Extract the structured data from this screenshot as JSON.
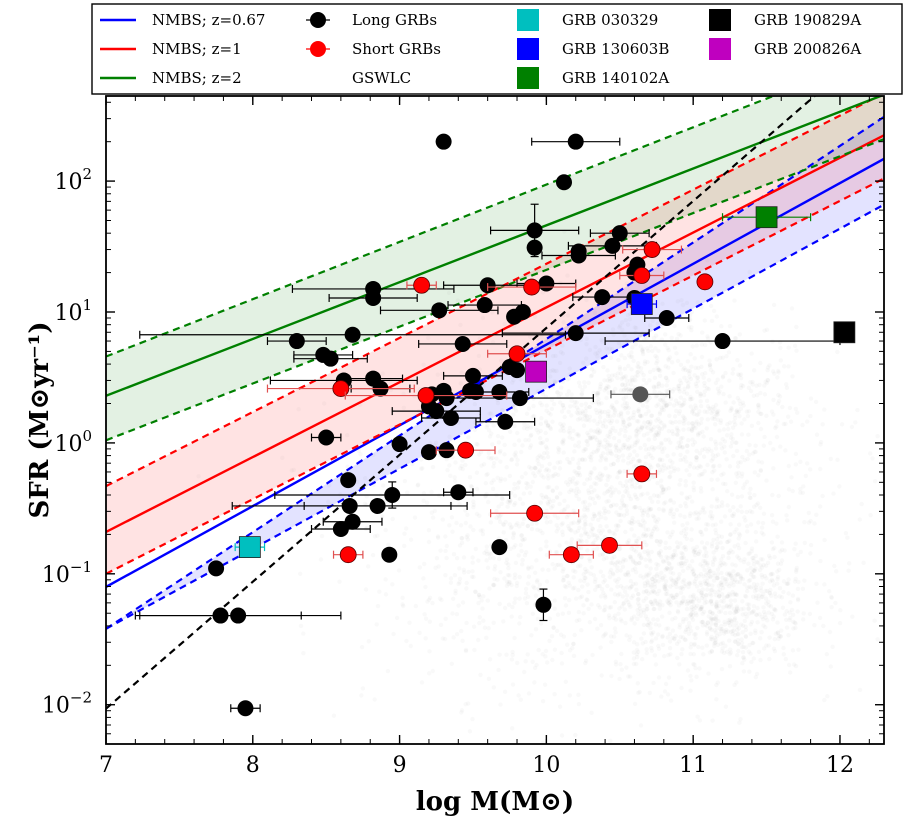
{
  "chart_data": {
    "type": "scatter",
    "xlabel": "log M(M⊙)",
    "ylabel": "SFR (M⊙yr⁻¹)",
    "xlim": [
      7,
      12.3
    ],
    "ylim_log10": [
      -2.3,
      2.65
    ],
    "x_ticks": [
      7,
      8,
      9,
      10,
      11,
      12
    ],
    "y_ticks": [
      {
        "exp": -2,
        "label_base": "10",
        "label_exp": "−2"
      },
      {
        "exp": -1,
        "label_base": "10",
        "label_exp": "−1"
      },
      {
        "exp": 0,
        "label_base": "10",
        "label_exp": "0"
      },
      {
        "exp": 1,
        "label_base": "10",
        "label_exp": "1"
      },
      {
        "exp": 2,
        "label_base": "10",
        "label_exp": "2"
      }
    ],
    "legend": [
      {
        "label": "NMBS; z=0.67",
        "kind": "line",
        "color": "#0000ff"
      },
      {
        "label": "NMBS; z=1",
        "kind": "line",
        "color": "#ff0000"
      },
      {
        "label": "NMBS; z=2",
        "kind": "line",
        "color": "#008000"
      },
      {
        "label": "Long GRBs",
        "kind": "circle",
        "color": "#000000"
      },
      {
        "label": "Short GRBs",
        "kind": "circle",
        "color": "#ff0000"
      },
      {
        "label": "GSWLC",
        "kind": "none",
        "color": "#808080"
      },
      {
        "label": "GRB 030329",
        "kind": "square",
        "color": "#00bfbf"
      },
      {
        "label": "GRB 130603B",
        "kind": "square",
        "color": "#0000ff"
      },
      {
        "label": "GRB 140102A",
        "kind": "square",
        "color": "#008000"
      },
      {
        "label": "GRB 190829A",
        "kind": "square",
        "color": "#000000"
      },
      {
        "label": "GRB 200826A",
        "kind": "square",
        "color": "#bf00bf"
      }
    ],
    "main_sequence": [
      {
        "name": "NMBS; z=0.67",
        "color": "#0000ff",
        "x": [
          7,
          12.3
        ],
        "y_log10": [
          -1.1,
          2.17
        ],
        "band_log10": [
          -1.42,
          2.49
        ]
      },
      {
        "name": "NMBS; z=1",
        "color": "#ff0000",
        "x": [
          7,
          12.3
        ],
        "y_log10": [
          -0.68,
          2.35
        ],
        "band_log10": [
          -0.33,
          2.67
        ]
      },
      {
        "name": "NMBS; z=2",
        "color": "#008000",
        "x": [
          7,
          12.3
        ],
        "y_log10": [
          0.36,
          2.66
        ],
        "band_log10": [
          0.66,
          2.98
        ]
      }
    ],
    "band_lower_log10": [
      {
        "name": "NMBS; z=0.67",
        "y_log10": [
          -1.42,
          1.82
        ]
      },
      {
        "name": "NMBS; z=1",
        "y_log10": [
          -1.0,
          2.02
        ]
      },
      {
        "name": "NMBS; z=2",
        "y_log10": [
          0.02,
          2.32
        ]
      }
    ],
    "reference_line": {
      "style": "dashed",
      "color": "#000000",
      "x": [
        7,
        11.9
      ],
      "y_log10": [
        -2.03,
        2.72
      ]
    },
    "gswlc_clouds": [
      {
        "cx": 10.45,
        "cy_log10": -0.35,
        "sx": 0.75,
        "sy": 0.6,
        "n": 1400
      },
      {
        "cx": 10.75,
        "cy_log10": 0.35,
        "sx": 0.4,
        "sy": 0.35,
        "n": 700
      },
      {
        "cx": 11.1,
        "cy_log10": -1.2,
        "sx": 0.35,
        "sy": 0.3,
        "n": 900
      },
      {
        "cx": 10.0,
        "cy_log10": -0.9,
        "sx": 0.6,
        "sy": 0.6,
        "n": 600
      }
    ],
    "long_grbs": [
      {
        "x": 9.3,
        "y": 200
      },
      {
        "x": 10.2,
        "y": 200,
        "xerr": 0.3
      },
      {
        "x": 10.12,
        "y": 98
      },
      {
        "x": 9.92,
        "y": 42,
        "yerr": 0.2,
        "xerr": 0.3
      },
      {
        "x": 9.92,
        "y": 31
      },
      {
        "x": 10.5,
        "y": 40,
        "xerr": 0.2
      },
      {
        "x": 10.45,
        "y": 32,
        "xerr": 0.3
      },
      {
        "x": 10.22,
        "y": 29
      },
      {
        "x": 10.22,
        "y": 27,
        "xerr": 0.25
      },
      {
        "x": 10.62,
        "y": 23
      },
      {
        "x": 10.6,
        "y": 20
      },
      {
        "x": 10.0,
        "y": 16.5,
        "xerr": 0.2
      },
      {
        "x": 9.6,
        "y": 16,
        "xerr": 0.3
      },
      {
        "x": 8.82,
        "y": 15,
        "xerr": 0.55
      },
      {
        "x": 8.82,
        "y": 12.8,
        "xerr": 0.3
      },
      {
        "x": 9.27,
        "y": 10.3,
        "xerr": 0.4
      },
      {
        "x": 9.58,
        "y": 11.3,
        "xerr": 0.25
      },
      {
        "x": 10.38,
        "y": 13,
        "xerr": 0.2
      },
      {
        "x": 10.6,
        "y": 12.8
      },
      {
        "x": 10.82,
        "y": 9,
        "xerr": 0.15
      },
      {
        "x": 9.84,
        "y": 10
      },
      {
        "x": 9.78,
        "y": 9.2
      },
      {
        "x": 10.2,
        "y": 6.9,
        "xerr": 0.5
      },
      {
        "x": 8.3,
        "y": 6,
        "xerr": 0.2
      },
      {
        "x": 8.68,
        "y": 6.7,
        "xerr": 1.45
      },
      {
        "x": 8.48,
        "y": 4.7,
        "xerr": 0.2
      },
      {
        "x": 8.53,
        "y": 4.4,
        "xerr": 0.25
      },
      {
        "x": 9.43,
        "y": 5.7,
        "xerr": 0.3
      },
      {
        "x": 11.2,
        "y": 6,
        "xerr": 0.8
      },
      {
        "x": 9.75,
        "y": 3.8
      },
      {
        "x": 9.8,
        "y": 3.6
      },
      {
        "x": 9.5,
        "y": 3.25,
        "xerr": 0.2
      },
      {
        "x": 8.62,
        "y": 3.0,
        "xerr": 0.5
      },
      {
        "x": 8.82,
        "y": 3.1,
        "xerr": 0.2
      },
      {
        "x": 8.87,
        "y": 2.6,
        "xerr": 0.2
      },
      {
        "x": 9.22,
        "y": 2.35
      },
      {
        "x": 9.3,
        "y": 2.5
      },
      {
        "x": 9.48,
        "y": 2.5
      },
      {
        "x": 9.52,
        "y": 2.45
      },
      {
        "x": 9.68,
        "y": 2.45,
        "xerr": 0.2
      },
      {
        "x": 9.82,
        "y": 2.2,
        "xerr": 0.5
      },
      {
        "x": 9.32,
        "y": 2.2
      },
      {
        "x": 9.2,
        "y": 1.9
      },
      {
        "x": 9.25,
        "y": 1.75,
        "xerr": 0.3
      },
      {
        "x": 9.35,
        "y": 1.55,
        "xerr": 0.2
      },
      {
        "x": 9.72,
        "y": 1.45,
        "xerr": 0.2
      },
      {
        "x": 10.64,
        "y": 2.35,
        "xerr": 0.2,
        "gray": true
      },
      {
        "x": 8.5,
        "y": 1.1,
        "xerr": 0.1
      },
      {
        "x": 9.0,
        "y": 0.98
      },
      {
        "x": 9.2,
        "y": 0.85
      },
      {
        "x": 9.32,
        "y": 0.88
      },
      {
        "x": 8.65,
        "y": 0.52
      },
      {
        "x": 9.4,
        "y": 0.42,
        "xerr": 0.1
      },
      {
        "x": 8.95,
        "y": 0.4,
        "yerr": 0.1,
        "xerr": 0.8
      },
      {
        "x": 8.85,
        "y": 0.33,
        "xerr": 0.5
      },
      {
        "x": 8.66,
        "y": 0.33,
        "xerr": 0.8
      },
      {
        "x": 8.68,
        "y": 0.25,
        "xerr": 0.2
      },
      {
        "x": 8.6,
        "y": 0.22,
        "xerr": 0.2
      },
      {
        "x": 9.68,
        "y": 0.16
      },
      {
        "x": 8.93,
        "y": 0.14
      },
      {
        "x": 7.75,
        "y": 0.11
      },
      {
        "x": 7.78,
        "y": 0.048,
        "xerr": 0.55
      },
      {
        "x": 7.9,
        "y": 0.048,
        "xerr": 0.7
      },
      {
        "x": 9.98,
        "y": 0.058,
        "yerr": 0.12
      },
      {
        "x": 7.95,
        "y": 0.0094,
        "xerr": 0.1
      }
    ],
    "short_grbs": [
      {
        "x": 9.15,
        "y": 16,
        "xerr": 0.1
      },
      {
        "x": 9.9,
        "y": 15.5,
        "xerr": 0.3
      },
      {
        "x": 10.72,
        "y": 30,
        "xerr": 0.2
      },
      {
        "x": 10.65,
        "y": 19,
        "xerr": 0.15
      },
      {
        "x": 11.08,
        "y": 17
      },
      {
        "x": 9.8,
        "y": 4.8,
        "xerr": 0.2
      },
      {
        "x": 8.6,
        "y": 2.6,
        "xerr": 0.5
      },
      {
        "x": 9.18,
        "y": 2.3,
        "xerr": 0.55
      },
      {
        "x": 9.45,
        "y": 0.88,
        "xerr": 0.2
      },
      {
        "x": 10.65,
        "y": 0.58,
        "xerr": 0.1
      },
      {
        "x": 9.92,
        "y": 0.29,
        "xerr": 0.3
      },
      {
        "x": 10.43,
        "y": 0.165,
        "xerr": 0.22
      },
      {
        "x": 10.17,
        "y": 0.14,
        "xerr": 0.15
      },
      {
        "x": 8.65,
        "y": 0.14,
        "xerr": 0.1
      }
    ],
    "highlighted_grbs": [
      {
        "name": "GRB 030329",
        "x": 7.98,
        "y": 0.16,
        "color": "#00bfbf",
        "xerr": 0.1
      },
      {
        "name": "GRB 130603B",
        "x": 10.65,
        "y": 11.5,
        "color": "#0000ff",
        "xerr": 0.1
      },
      {
        "name": "GRB 140102A",
        "x": 11.5,
        "y": 53,
        "color": "#008000",
        "xerr": 0.3
      },
      {
        "name": "GRB 190829A",
        "x": 12.03,
        "y": 7.0,
        "color": "#000000",
        "xerr": 0.05
      },
      {
        "name": "GRB 200826A",
        "x": 9.93,
        "y": 3.5,
        "color": "#bf00bf"
      }
    ]
  }
}
